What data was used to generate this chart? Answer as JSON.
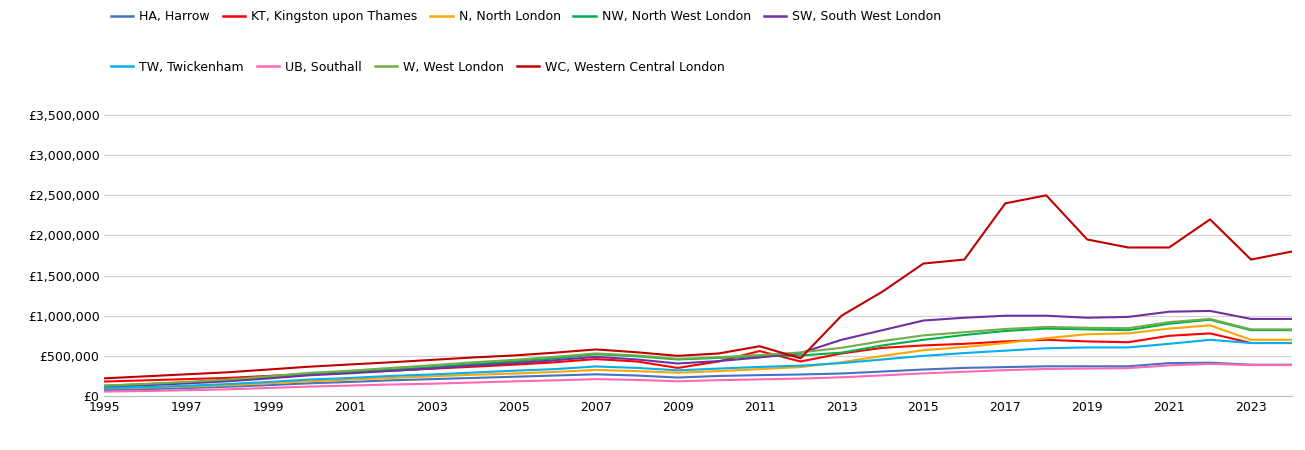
{
  "years": [
    1995,
    1996,
    1997,
    1998,
    1999,
    2000,
    2001,
    2002,
    2003,
    2004,
    2005,
    2006,
    2007,
    2008,
    2009,
    2010,
    2011,
    2012,
    2013,
    2014,
    2015,
    2016,
    2017,
    2018,
    2019,
    2020,
    2021,
    2022,
    2023,
    2024
  ],
  "series": {
    "HA, Harrow": {
      "color": "#4472C4",
      "data": [
        75000,
        85000,
        100000,
        115000,
        135000,
        158000,
        175000,
        195000,
        210000,
        225000,
        240000,
        255000,
        270000,
        255000,
        230000,
        250000,
        260000,
        268000,
        280000,
        305000,
        330000,
        350000,
        360000,
        370000,
        370000,
        370000,
        410000,
        415000,
        390000,
        390000
      ]
    },
    "KT, Kingston upon Thames": {
      "color": "#FF0000",
      "data": [
        180000,
        195000,
        210000,
        225000,
        250000,
        275000,
        295000,
        315000,
        340000,
        365000,
        390000,
        420000,
        460000,
        430000,
        350000,
        430000,
        560000,
        430000,
        530000,
        600000,
        630000,
        650000,
        680000,
        700000,
        680000,
        670000,
        750000,
        780000,
        660000,
        660000
      ]
    },
    "N, North London": {
      "color": "#FFA500",
      "data": [
        95000,
        105000,
        118000,
        133000,
        158000,
        183000,
        205000,
        225000,
        245000,
        265000,
        280000,
        300000,
        325000,
        310000,
        290000,
        310000,
        335000,
        360000,
        420000,
        500000,
        570000,
        610000,
        660000,
        720000,
        770000,
        780000,
        840000,
        880000,
        700000,
        700000
      ]
    },
    "NW, North West London": {
      "color": "#00B050",
      "data": [
        130000,
        148000,
        168000,
        193000,
        228000,
        268000,
        293000,
        328000,
        360000,
        398000,
        430000,
        468000,
        520000,
        495000,
        455000,
        475000,
        495000,
        505000,
        540000,
        630000,
        700000,
        760000,
        810000,
        840000,
        830000,
        820000,
        900000,
        950000,
        820000,
        820000
      ]
    },
    "SW, South West London": {
      "color": "#7030A0",
      "data": [
        115000,
        133000,
        157000,
        183000,
        218000,
        258000,
        283000,
        313000,
        343000,
        378000,
        408000,
        445000,
        488000,
        455000,
        405000,
        435000,
        480000,
        535000,
        700000,
        820000,
        940000,
        975000,
        1000000,
        1000000,
        975000,
        985000,
        1050000,
        1060000,
        960000,
        960000
      ]
    },
    "TW, Twickenham": {
      "color": "#00B0F0",
      "data": [
        98000,
        112000,
        128000,
        148000,
        175000,
        205000,
        225000,
        250000,
        268000,
        292000,
        315000,
        335000,
        368000,
        350000,
        320000,
        342000,
        362000,
        378000,
        410000,
        455000,
        500000,
        535000,
        565000,
        595000,
        605000,
        605000,
        650000,
        700000,
        660000,
        660000
      ]
    },
    "UB, Southall": {
      "color": "#FF69B4",
      "data": [
        55000,
        62000,
        72000,
        83000,
        100000,
        117000,
        130000,
        143000,
        153000,
        168000,
        182000,
        195000,
        210000,
        200000,
        183000,
        197000,
        207000,
        217000,
        233000,
        257000,
        282000,
        302000,
        322000,
        337000,
        342000,
        347000,
        382000,
        400000,
        385000,
        385000
      ]
    },
    "W, West London": {
      "color": "#70AD47",
      "data": [
        128000,
        150000,
        175000,
        205000,
        245000,
        288000,
        315000,
        350000,
        383000,
        420000,
        450000,
        488000,
        530000,
        505000,
        463000,
        483000,
        510000,
        543000,
        600000,
        685000,
        755000,
        795000,
        835000,
        860000,
        850000,
        845000,
        920000,
        960000,
        830000,
        830000
      ]
    },
    "WC, Western Central London": {
      "color": "#C00000",
      "data": [
        220000,
        245000,
        270000,
        295000,
        330000,
        365000,
        393000,
        420000,
        450000,
        480000,
        505000,
        540000,
        580000,
        545000,
        500000,
        530000,
        620000,
        470000,
        1000000,
        1300000,
        1650000,
        1700000,
        2400000,
        2500000,
        1950000,
        1850000,
        1850000,
        2200000,
        1700000,
        1800000
      ]
    }
  },
  "ylim": [
    0,
    3700000
  ],
  "yticks": [
    0,
    500000,
    1000000,
    1500000,
    2000000,
    2500000,
    3000000,
    3500000
  ],
  "ytick_labels": [
    "£0",
    "£500,000",
    "£1,000,000",
    "£1,500,000",
    "£2,000,000",
    "£2,500,000",
    "£3,000,000",
    "£3,500,000"
  ],
  "xticks": [
    1995,
    1997,
    1999,
    2001,
    2003,
    2005,
    2007,
    2009,
    2011,
    2013,
    2015,
    2017,
    2019,
    2021,
    2023
  ],
  "background_color": "#FFFFFF",
  "grid_color": "#D3D3D3",
  "legend_fontsize": 9,
  "tick_fontsize": 9,
  "linewidth": 1.5,
  "legend_row1": [
    "HA, Harrow",
    "KT, Kingston upon Thames",
    "N, North London",
    "NW, North West London",
    "SW, South West London"
  ],
  "legend_row2": [
    "TW, Twickenham",
    "UB, Southall",
    "W, West London",
    "WC, Western Central London"
  ]
}
